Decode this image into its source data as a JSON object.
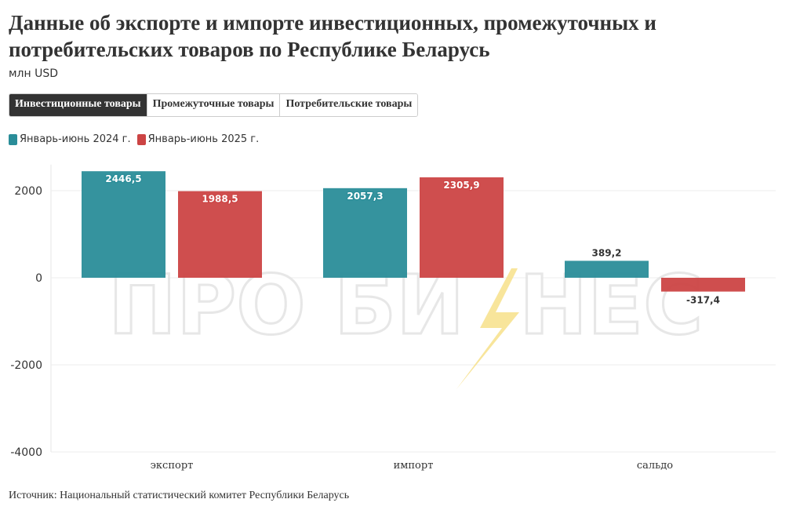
{
  "title": "Данные об экспорте и импорте инвестиционных, промежуточных и потребительских товаров по Республике Беларусь",
  "subtitle": "млн USD",
  "tabs": [
    {
      "label": "Инвестиционные товары",
      "active": true
    },
    {
      "label": "Промежуточные товары",
      "active": false
    },
    {
      "label": "Потребительские товары",
      "active": false
    }
  ],
  "watermark": {
    "left": "ПРО БИ",
    "right": "НЕС"
  },
  "source": "Источник: Национальный статистический комитет Республики Беларусь",
  "colors": {
    "series1": "#2a8d99",
    "series2": "#cc4444",
    "grid": "#eeeeee",
    "accent": "#f7e08a"
  },
  "chart_data": {
    "type": "bar",
    "categories": [
      "экспорт",
      "импорт",
      "сальдо"
    ],
    "series": [
      {
        "name": "Январь-июнь 2024 г.",
        "values": [
          2446.5,
          2057.3,
          389.2
        ],
        "labels": [
          "2446,5",
          "2057,3",
          "389,2"
        ],
        "color": "#2a8d99"
      },
      {
        "name": "Январь-июнь 2025 г.",
        "values": [
          1988.5,
          2305.9,
          -317.4
        ],
        "labels": [
          "1988,5",
          "2305,9",
          "-317,4"
        ],
        "color": "#cc4444"
      }
    ],
    "yticks": [
      -4000,
      -2000,
      0,
      2000
    ],
    "ytick_labels": [
      "-4000",
      "-2000",
      "0",
      "2000"
    ],
    "ylim": [
      -4000,
      2600
    ],
    "grid": true,
    "legend_position": "top-left"
  }
}
